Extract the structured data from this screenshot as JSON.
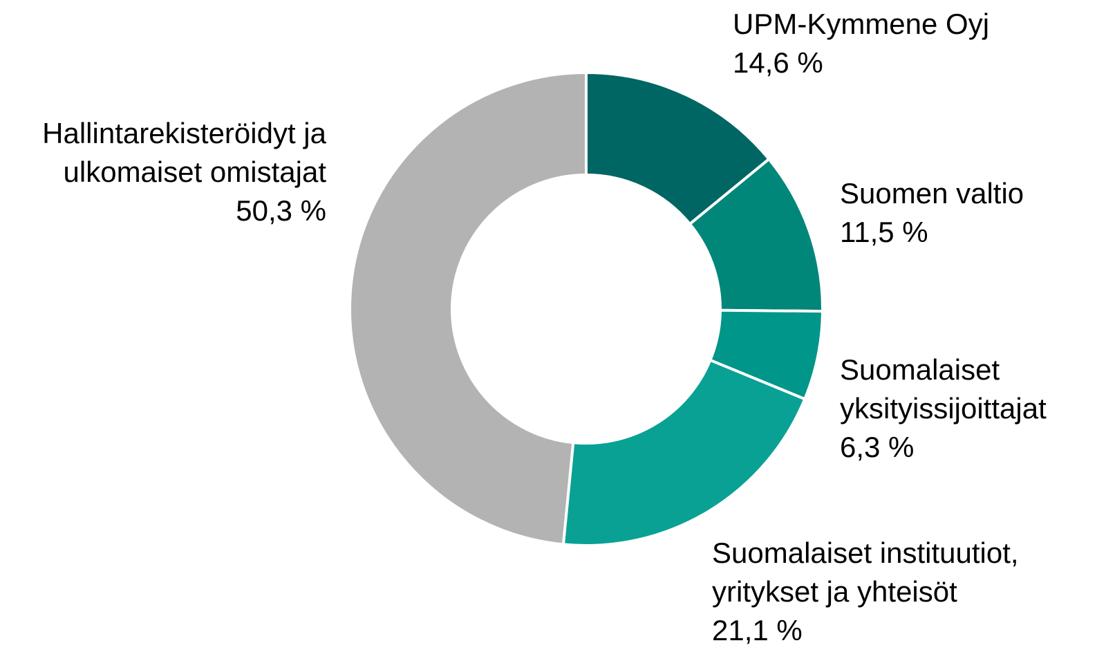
{
  "chart_data": {
    "type": "donut",
    "categories": [
      "UPM-Kymmene Oyj",
      "Suomen valtio",
      "Suomalaiset yksityissijoittajat",
      "Suomalaiset instituutiot, yritykset ja yhteisöt",
      "Hallintarekisteröidyt ja ulkomaiset omistajat"
    ],
    "values": [
      14.6,
      11.5,
      6.3,
      21.1,
      50.3
    ],
    "value_labels": [
      "14,6 %",
      "11,5 %",
      "6,3 %",
      "21,1 %",
      "50,3 %"
    ],
    "colors": [
      "#006663",
      "#00877a",
      "#009689",
      "#0aa195",
      "#b3b3b3"
    ]
  }
}
